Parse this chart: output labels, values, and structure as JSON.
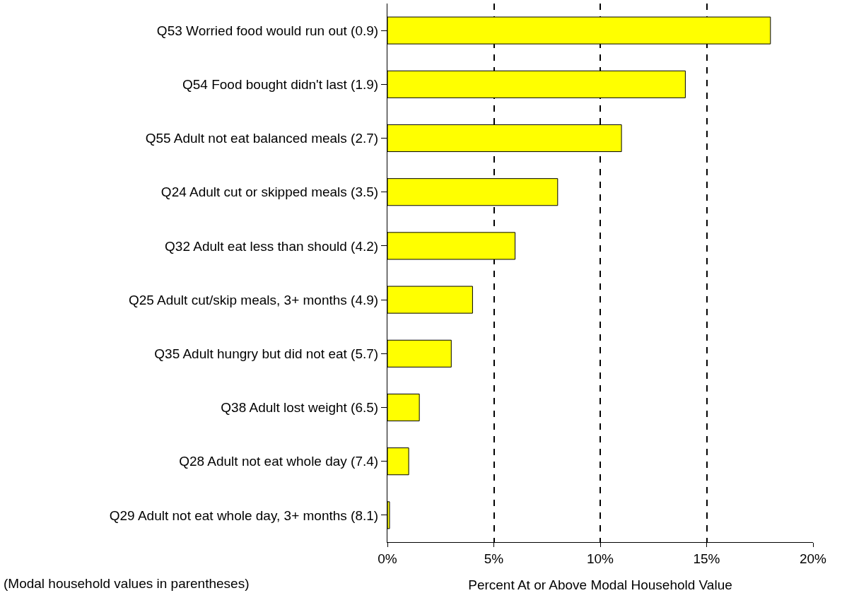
{
  "chart_data": {
    "type": "bar",
    "orientation": "horizontal",
    "xlabel": "Percent At or Above Modal Household Value",
    "categories": [
      "Q53 Worried food would run out (0.9)",
      "Q54 Food bought didn't last (1.9)",
      "Q55 Adult not eat balanced meals (2.7)",
      "Q24 Adult cut or skipped meals (3.5)",
      "Q32 Adult eat less than should (4.2)",
      "Q25 Adult cut/skip meals, 3+ months (4.9)",
      "Q35 Adult hungry but did not eat (5.7)",
      "Q38 Adult lost weight (6.5)",
      "Q28 Adult not eat whole day (7.4)",
      "Q29 Adult not eat whole day, 3+ months (8.1)"
    ],
    "values": [
      18.0,
      14.0,
      11.0,
      8.0,
      6.0,
      4.0,
      3.0,
      1.5,
      1.0,
      0.1
    ],
    "color": "#ffff00",
    "xlim": [
      0,
      20
    ],
    "xticks": [
      {
        "value": 0,
        "label": "0%"
      },
      {
        "value": 5,
        "label": "5%"
      },
      {
        "value": 10,
        "label": "10%"
      },
      {
        "value": 15,
        "label": "15%"
      },
      {
        "value": 20,
        "label": "20%"
      }
    ],
    "grid": "x",
    "legend": false,
    "annotations": [
      "(Modal household values in parentheses)"
    ]
  }
}
